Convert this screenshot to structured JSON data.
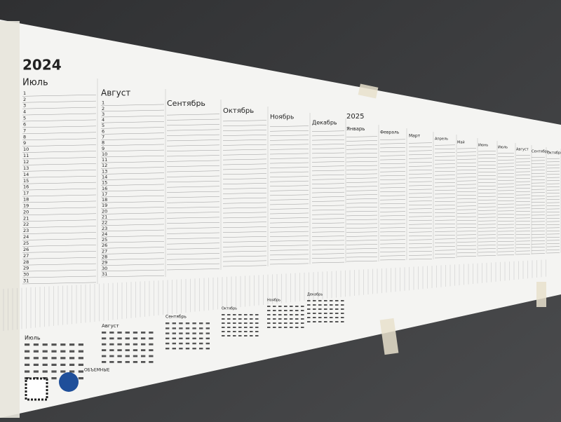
{
  "year": "2024",
  "next_year": "2025",
  "months": [
    "Июль",
    "Август",
    "Сентябрь",
    "Октябрь",
    "Ноябрь",
    "Декабрь",
    "Январь",
    "Февраль",
    "Март",
    "Апрель",
    "Май",
    "Июнь",
    "Июль",
    "Август",
    "Сентябрь",
    "Октябрь"
  ],
  "day_numbers": [
    1,
    2,
    3,
    4,
    5,
    6,
    7,
    8,
    9,
    10,
    11,
    12,
    13,
    14,
    15,
    16,
    17,
    18,
    19,
    20,
    21,
    22,
    23,
    24,
    25,
    26,
    27,
    28,
    29,
    30,
    31
  ],
  "brand": "ОБЪЕМНЫЕ"
}
